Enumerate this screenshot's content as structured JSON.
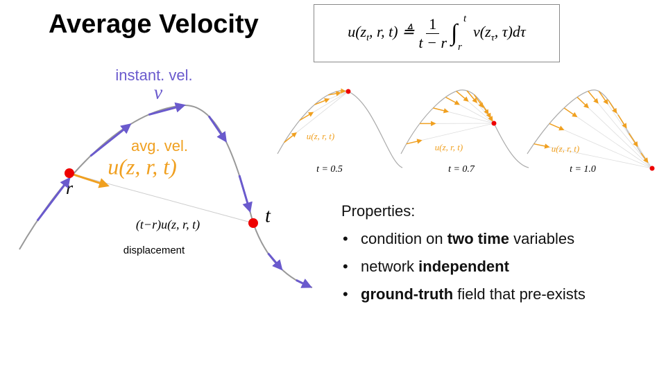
{
  "title": "Average Velocity",
  "formula": {
    "lhs": "u(z",
    "lhs_sub": "t",
    "lhs_rest": ", r, t) ≜",
    "numerator": "1",
    "denominator": "t − r",
    "integral": "∫",
    "upper": "t",
    "lower": "r",
    "integrand": "v(z",
    "integrand_sub": "τ",
    "integrand_rest": ", τ)dτ"
  },
  "diagram": {
    "instant_label": "instant. vel.",
    "instant_symbol": "v",
    "avg_label": "avg. vel.",
    "avg_symbol": "u(z, r, t)",
    "start": "r",
    "end": "t",
    "displacement_formula": "(t−r)u(z, r, t)",
    "displacement_label": "displacement"
  },
  "snapshots": [
    {
      "label": "u(z, r, t)",
      "time": "t = 0.5"
    },
    {
      "label": "u(z, r, t)",
      "time": "t = 0.7"
    },
    {
      "label": "u(z, r, t)",
      "time": "t = 1.0"
    }
  ],
  "properties": {
    "heading": "Properties:",
    "items": [
      [
        {
          "text": "condition on ",
          "bold": false
        },
        {
          "text": "two time",
          "bold": true
        },
        {
          "text": " variables",
          "bold": false
        }
      ],
      [
        {
          "text": "network ",
          "bold": false
        },
        {
          "text": "independent",
          "bold": true
        }
      ],
      [
        {
          "text": "ground-truth",
          "bold": true
        },
        {
          "text": " field that pre-exists",
          "bold": false
        }
      ]
    ]
  }
}
